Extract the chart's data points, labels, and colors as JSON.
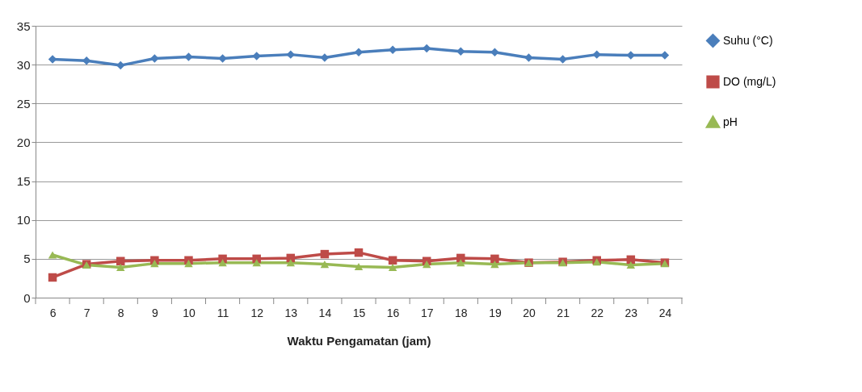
{
  "chart_data": {
    "type": "line",
    "xlabel": "Waktu Pengamatan (jam)",
    "categories": [
      "6",
      "7",
      "8",
      "9",
      "10",
      "11",
      "12",
      "13",
      "14",
      "15",
      "16",
      "17",
      "18",
      "19",
      "20",
      "21",
      "22",
      "23",
      "24"
    ],
    "series": [
      {
        "name": "Suhu (°C)",
        "color": "#4a7ebb",
        "marker": "diamond",
        "values": [
          30.7,
          30.5,
          29.9,
          30.8,
          31.0,
          30.8,
          31.1,
          31.3,
          30.9,
          31.6,
          31.9,
          32.1,
          31.7,
          31.6,
          30.9,
          30.7,
          31.3,
          31.2,
          31.2
        ]
      },
      {
        "name": "DO (mg/L)",
        "color": "#be4b48",
        "marker": "square",
        "values": [
          2.6,
          4.3,
          4.7,
          4.8,
          4.8,
          5.0,
          5.0,
          5.1,
          5.6,
          5.8,
          4.8,
          4.7,
          5.1,
          5.0,
          4.5,
          4.6,
          4.8,
          4.9,
          4.5
        ]
      },
      {
        "name": "pH",
        "color": "#98b954",
        "marker": "triangle",
        "values": [
          5.5,
          4.2,
          3.9,
          4.4,
          4.4,
          4.5,
          4.5,
          4.5,
          4.3,
          4.0,
          3.9,
          4.3,
          4.5,
          4.3,
          4.5,
          4.5,
          4.6,
          4.2,
          4.4
        ]
      }
    ],
    "ylim": [
      0,
      35
    ],
    "yticks": [
      0,
      5,
      10,
      15,
      20,
      25,
      30,
      35
    ],
    "grid": "y",
    "legend": "right"
  }
}
